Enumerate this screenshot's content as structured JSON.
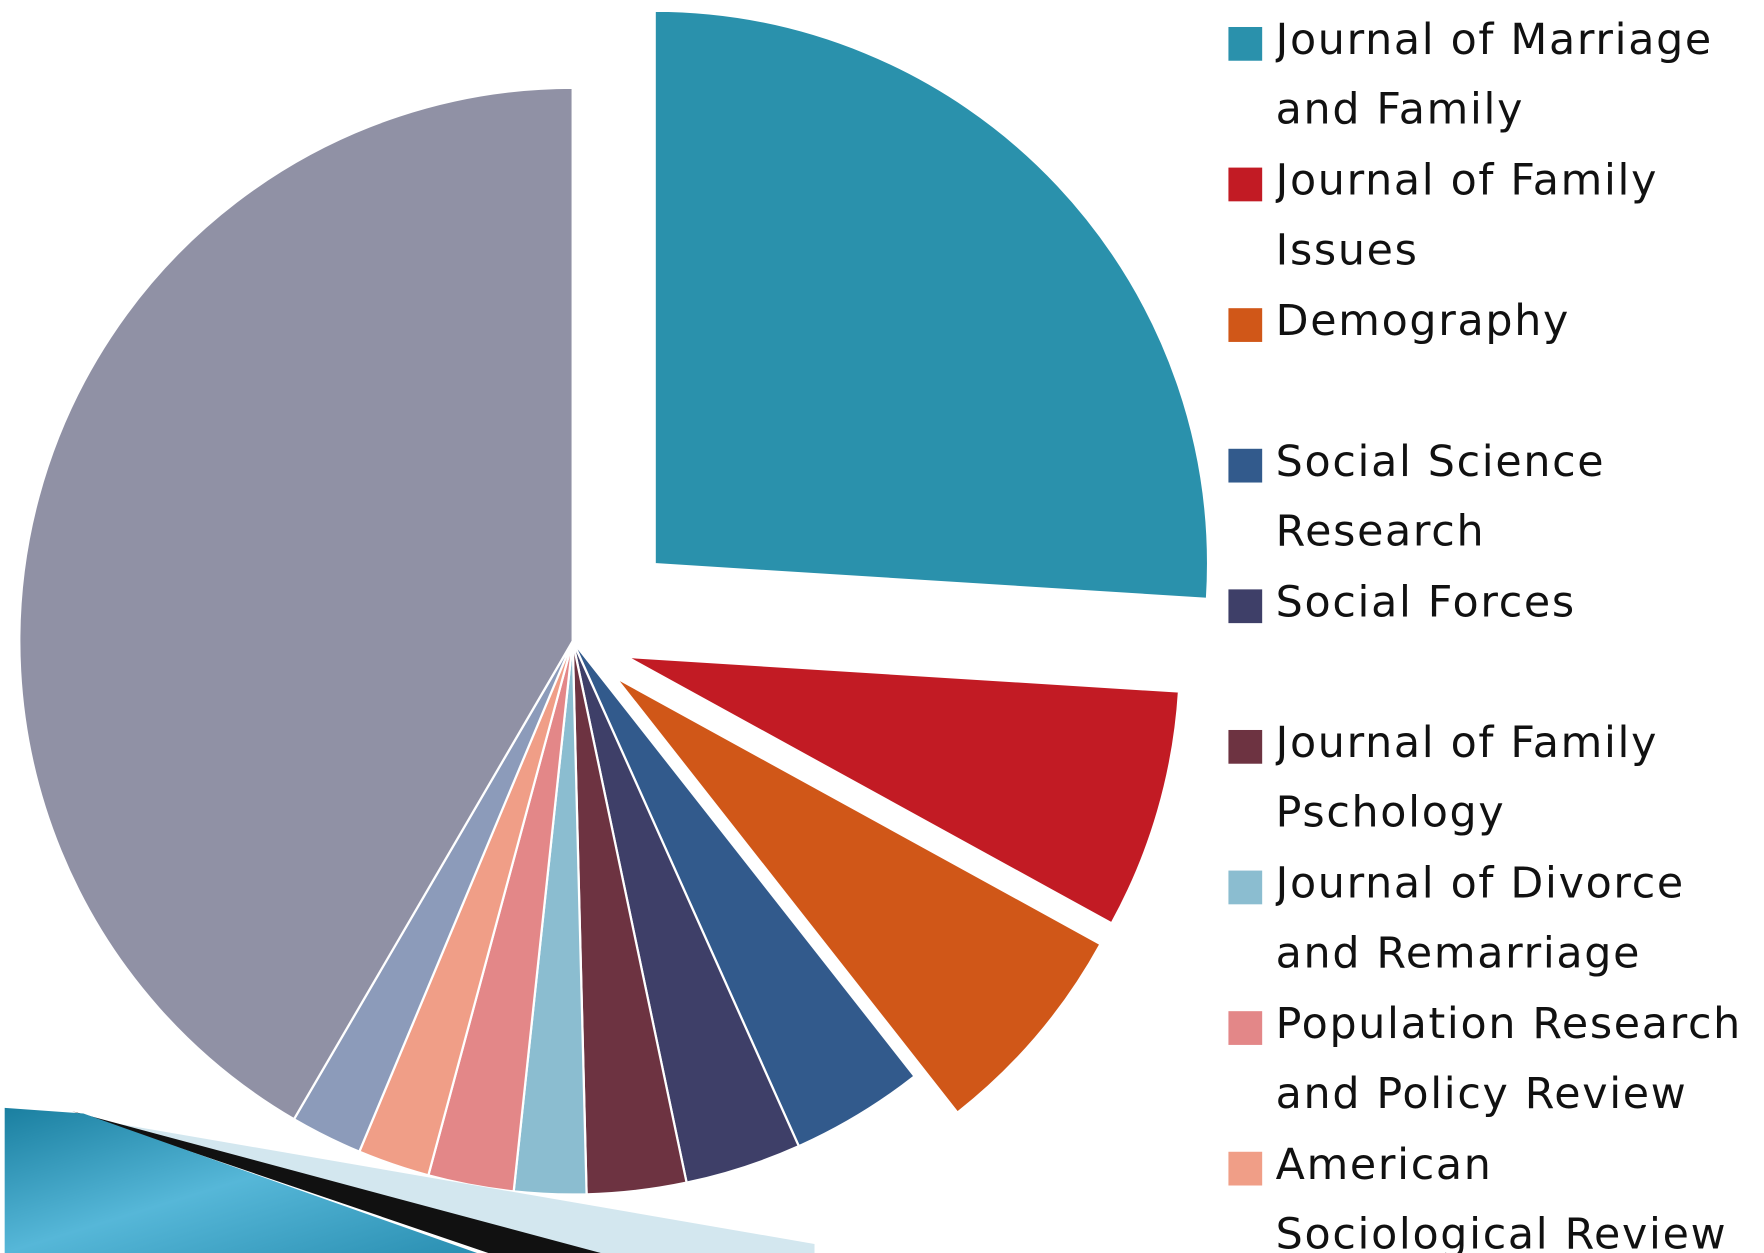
{
  "chart_data": {
    "type": "pie",
    "categories": [
      "Journal of Marriage and Family",
      "Journal of Family Issues",
      "Demography",
      "Social Science Research",
      "Social Forces",
      "Journal of Family Pschology",
      "Journal of Divorce and Remarriage",
      "Population Research and Policy Review",
      "American Sociological Review",
      null,
      null
    ],
    "values": [
      26,
      7,
      6.4,
      3.9,
      3.4,
      2.9,
      2.1,
      2.5,
      2.1,
      2.1,
      41.6
    ],
    "colors": [
      "#2a91ac",
      "#c21b24",
      "#d05718",
      "#325a8c",
      "#3e3f68",
      "#6d3341",
      "#8bbdd0",
      "#e38788",
      "#f09e87",
      "#8c9bba",
      "#9091a5"
    ]
  }
}
